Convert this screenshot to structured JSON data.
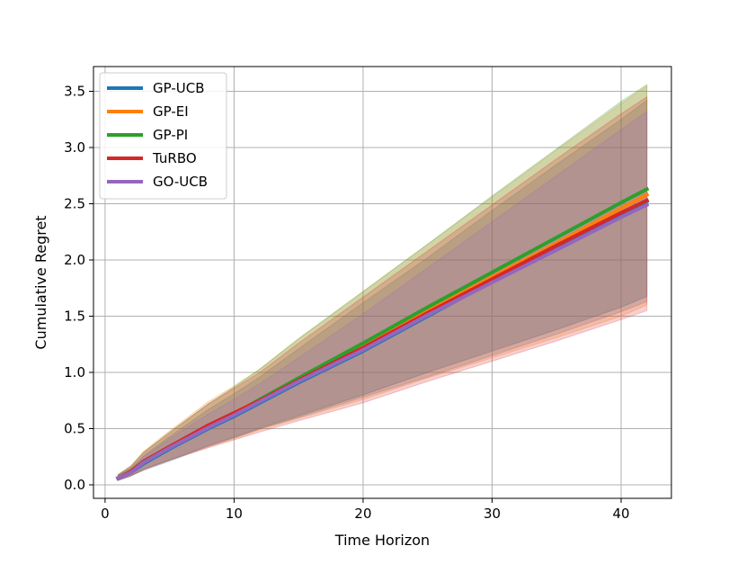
{
  "chart_data": {
    "type": "line",
    "xlabel": "Time Horizon",
    "ylabel": "Cumulative Regret",
    "xlim": [
      -0.9,
      43.9
    ],
    "ylim": [
      -0.12,
      3.72
    ],
    "xticks": [
      0,
      10,
      20,
      30,
      40
    ],
    "xtick_labels": [
      "0",
      "10",
      "20",
      "30",
      "40"
    ],
    "yticks": [
      0.0,
      0.5,
      1.0,
      1.5,
      2.0,
      2.5,
      3.0,
      3.5
    ],
    "ytick_labels": [
      "0.0",
      "0.5",
      "1.0",
      "1.5",
      "2.0",
      "2.5",
      "3.0",
      "3.5"
    ],
    "grid": true,
    "legend_position": "upper-left",
    "x": [
      1,
      2,
      3,
      5,
      8,
      10,
      12,
      15,
      20,
      25,
      30,
      35,
      40,
      42
    ],
    "series": [
      {
        "name": "GP-UCB",
        "color": "#1f77b4",
        "values": [
          0.06,
          0.11,
          0.19,
          0.32,
          0.5,
          0.61,
          0.73,
          0.91,
          1.19,
          1.5,
          1.81,
          2.1,
          2.4,
          2.52
        ],
        "lower": [
          0.04,
          0.08,
          0.13,
          0.21,
          0.34,
          0.42,
          0.5,
          0.6,
          0.78,
          0.96,
          1.15,
          1.34,
          1.54,
          1.63
        ],
        "upper": [
          0.09,
          0.15,
          0.26,
          0.43,
          0.67,
          0.81,
          0.96,
          1.21,
          1.62,
          2.02,
          2.44,
          2.85,
          3.25,
          3.42
        ]
      },
      {
        "name": "GP-EI",
        "color": "#ff7f0e",
        "values": [
          0.06,
          0.12,
          0.21,
          0.34,
          0.53,
          0.64,
          0.76,
          0.94,
          1.23,
          1.55,
          1.85,
          2.15,
          2.46,
          2.58
        ],
        "lower": [
          0.04,
          0.08,
          0.14,
          0.22,
          0.34,
          0.41,
          0.49,
          0.59,
          0.76,
          0.95,
          1.13,
          1.31,
          1.5,
          1.6
        ],
        "upper": [
          0.09,
          0.17,
          0.3,
          0.48,
          0.74,
          0.88,
          1.03,
          1.3,
          1.72,
          2.14,
          2.56,
          2.98,
          3.39,
          3.55
        ]
      },
      {
        "name": "GP-PI",
        "color": "#2ca02c",
        "values": [
          0.06,
          0.12,
          0.21,
          0.34,
          0.52,
          0.63,
          0.76,
          0.95,
          1.26,
          1.58,
          1.89,
          2.2,
          2.51,
          2.63
        ],
        "lower": [
          0.04,
          0.08,
          0.14,
          0.22,
          0.35,
          0.42,
          0.5,
          0.61,
          0.8,
          1.0,
          1.19,
          1.38,
          1.58,
          1.68
        ],
        "upper": [
          0.09,
          0.17,
          0.29,
          0.47,
          0.72,
          0.87,
          1.03,
          1.3,
          1.72,
          2.14,
          2.57,
          2.99,
          3.41,
          3.56
        ]
      },
      {
        "name": "TuRBO",
        "color": "#d62728",
        "values": [
          0.06,
          0.12,
          0.21,
          0.34,
          0.53,
          0.64,
          0.75,
          0.93,
          1.22,
          1.53,
          1.83,
          2.13,
          2.42,
          2.53
        ],
        "lower": [
          0.04,
          0.08,
          0.14,
          0.22,
          0.33,
          0.4,
          0.47,
          0.57,
          0.73,
          0.92,
          1.1,
          1.28,
          1.47,
          1.55
        ],
        "upper": [
          0.09,
          0.16,
          0.29,
          0.46,
          0.72,
          0.86,
          1.0,
          1.26,
          1.67,
          2.08,
          2.49,
          2.9,
          3.3,
          3.45
        ]
      },
      {
        "name": "GO-UCB",
        "color": "#9467bd",
        "values": [
          0.06,
          0.11,
          0.2,
          0.33,
          0.51,
          0.62,
          0.74,
          0.92,
          1.2,
          1.51,
          1.8,
          2.09,
          2.38,
          2.49
        ],
        "lower": [
          0.04,
          0.08,
          0.13,
          0.22,
          0.35,
          0.43,
          0.51,
          0.62,
          0.8,
          1.0,
          1.19,
          1.38,
          1.58,
          1.67
        ],
        "upper": [
          0.08,
          0.14,
          0.25,
          0.41,
          0.63,
          0.76,
          0.9,
          1.13,
          1.52,
          1.93,
          2.34,
          2.75,
          3.16,
          3.32
        ]
      }
    ]
  }
}
